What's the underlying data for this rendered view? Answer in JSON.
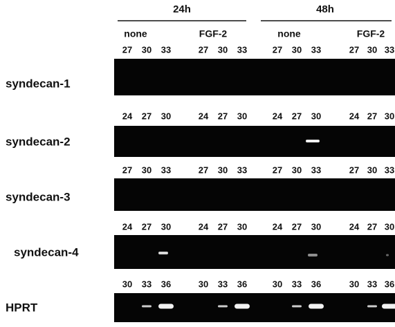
{
  "header": {
    "timepoints": [
      {
        "label": "24h",
        "treatments": [
          "none",
          "FGF-2"
        ]
      },
      {
        "label": "48h",
        "treatments": [
          "none",
          "FGF-2"
        ]
      }
    ]
  },
  "rows": [
    {
      "label": "syndecan-1",
      "lanes": [
        [
          27,
          30,
          33
        ],
        [
          27,
          30,
          33
        ],
        [
          27,
          30,
          33
        ],
        [
          27,
          30,
          33
        ]
      ]
    },
    {
      "label": "syndecan-2",
      "lanes": [
        [
          24,
          27,
          30
        ],
        [
          24,
          27,
          30
        ],
        [
          24,
          27,
          30
        ],
        [
          24,
          27,
          30
        ]
      ]
    },
    {
      "label": "syndecan-3",
      "lanes": [
        [
          27,
          30,
          33
        ],
        [
          27,
          30,
          33
        ],
        [
          27,
          30,
          33
        ],
        [
          27,
          30,
          33
        ]
      ]
    },
    {
      "label": "syndecan-4",
      "lanes": [
        [
          24,
          27,
          30
        ],
        [
          24,
          27,
          30
        ],
        [
          24,
          27,
          30
        ],
        [
          24,
          27,
          30
        ]
      ]
    },
    {
      "label": "HPRT",
      "lanes": [
        [
          30,
          33,
          36
        ],
        [
          30,
          33,
          36
        ],
        [
          30,
          33,
          36
        ],
        [
          30,
          33,
          36
        ]
      ]
    }
  ]
}
